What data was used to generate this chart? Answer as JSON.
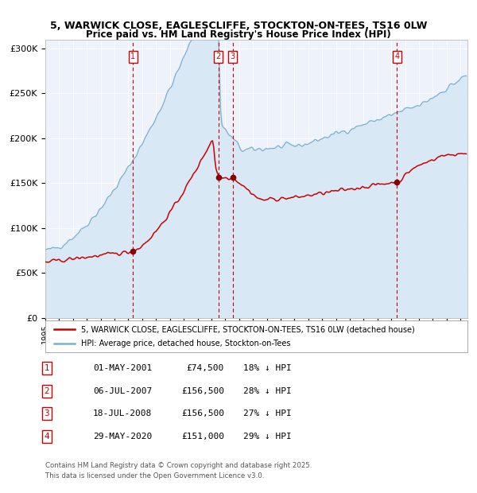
{
  "title1": "5, WARWICK CLOSE, EAGLESCLIFFE, STOCKTON-ON-TEES, TS16 0LW",
  "title2": "Price paid vs. HM Land Registry's House Price Index (HPI)",
  "ylabel_ticks": [
    "£0",
    "£50K",
    "£100K",
    "£150K",
    "£200K",
    "£250K",
    "£300K"
  ],
  "ytick_vals": [
    0,
    50000,
    100000,
    150000,
    200000,
    250000,
    300000
  ],
  "ylim": [
    0,
    310000
  ],
  "xlim_start": 1995.0,
  "xlim_end": 2025.5,
  "transactions": [
    {
      "label": "1",
      "date": 2001.33,
      "price": 74500,
      "pct": "18%",
      "date_str": "01-MAY-2001"
    },
    {
      "label": "2",
      "date": 2007.51,
      "price": 156500,
      "pct": "28%",
      "date_str": "06-JUL-2007"
    },
    {
      "label": "3",
      "date": 2008.54,
      "price": 156500,
      "pct": "27%",
      "date_str": "18-JUL-2008"
    },
    {
      "label": "4",
      "date": 2020.41,
      "price": 151000,
      "pct": "29%",
      "date_str": "29-MAY-2020"
    }
  ],
  "legend_property": "5, WARWICK CLOSE, EAGLESCLIFFE, STOCKTON-ON-TEES, TS16 0LW (detached house)",
  "legend_hpi": "HPI: Average price, detached house, Stockton-on-Tees",
  "property_color": "#cc0000",
  "hpi_color": "#7aafd4",
  "hpi_fill_color": "#d8e8f4",
  "vline_color": "#cc0000",
  "marker_color": "#880000",
  "box_color": "#cc0000",
  "footer1": "Contains HM Land Registry data © Crown copyright and database right 2025.",
  "footer2": "This data is licensed under the Open Government Licence v3.0.",
  "background_color": "#ffffff",
  "plot_bg_color": "#eef2fa"
}
